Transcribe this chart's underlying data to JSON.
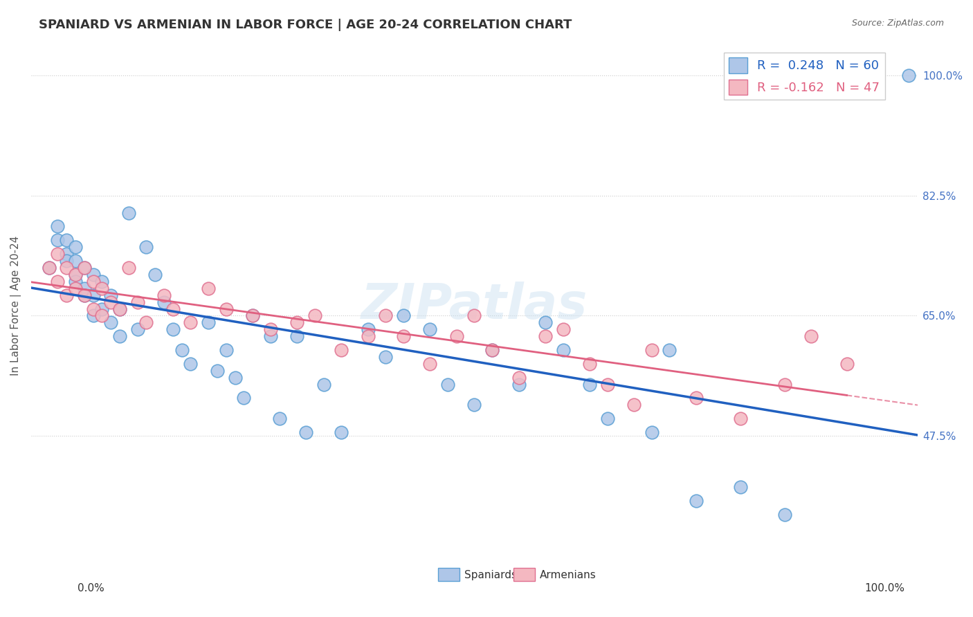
{
  "title": "SPANIARD VS ARMENIAN IN LABOR FORCE | AGE 20-24 CORRELATION CHART",
  "source": "Source: ZipAtlas.com",
  "ylabel": "In Labor Force | Age 20-24",
  "ytick_values": [
    0.475,
    0.65,
    0.825,
    1.0
  ],
  "xrange": [
    0.0,
    1.0
  ],
  "yrange": [
    0.28,
    1.05
  ],
  "spaniards_R": 0.248,
  "spaniards_N": 60,
  "armenians_R": -0.162,
  "armenians_N": 47,
  "spaniard_color": "#aec6e8",
  "spaniard_edge": "#5a9fd4",
  "armenian_color": "#f4b8c1",
  "armenian_edge": "#e07090",
  "line_spaniard_color": "#2060c0",
  "line_armenian_color": "#e06080",
  "watermark": "ZIPatlas",
  "spaniards_x": [
    0.02,
    0.03,
    0.03,
    0.04,
    0.04,
    0.04,
    0.05,
    0.05,
    0.05,
    0.05,
    0.06,
    0.06,
    0.06,
    0.07,
    0.07,
    0.07,
    0.08,
    0.08,
    0.09,
    0.09,
    0.1,
    0.1,
    0.11,
    0.12,
    0.13,
    0.14,
    0.15,
    0.16,
    0.17,
    0.18,
    0.2,
    0.21,
    0.22,
    0.23,
    0.24,
    0.25,
    0.27,
    0.28,
    0.3,
    0.31,
    0.33,
    0.35,
    0.38,
    0.4,
    0.42,
    0.45,
    0.47,
    0.5,
    0.52,
    0.55,
    0.58,
    0.6,
    0.63,
    0.65,
    0.7,
    0.72,
    0.75,
    0.8,
    0.85,
    0.99
  ],
  "spaniards_y": [
    0.72,
    0.76,
    0.78,
    0.76,
    0.74,
    0.73,
    0.75,
    0.73,
    0.71,
    0.7,
    0.72,
    0.69,
    0.68,
    0.71,
    0.68,
    0.65,
    0.7,
    0.66,
    0.68,
    0.64,
    0.66,
    0.62,
    0.8,
    0.63,
    0.75,
    0.71,
    0.67,
    0.63,
    0.6,
    0.58,
    0.64,
    0.57,
    0.6,
    0.56,
    0.53,
    0.65,
    0.62,
    0.5,
    0.62,
    0.48,
    0.55,
    0.48,
    0.63,
    0.59,
    0.65,
    0.63,
    0.55,
    0.52,
    0.6,
    0.55,
    0.64,
    0.6,
    0.55,
    0.5,
    0.48,
    0.6,
    0.38,
    0.4,
    0.36,
    1.0
  ],
  "armenians_x": [
    0.02,
    0.03,
    0.03,
    0.04,
    0.04,
    0.05,
    0.05,
    0.06,
    0.06,
    0.07,
    0.07,
    0.08,
    0.08,
    0.09,
    0.1,
    0.11,
    0.12,
    0.13,
    0.15,
    0.16,
    0.18,
    0.2,
    0.22,
    0.25,
    0.27,
    0.3,
    0.32,
    0.35,
    0.38,
    0.4,
    0.42,
    0.45,
    0.48,
    0.5,
    0.52,
    0.55,
    0.58,
    0.6,
    0.63,
    0.65,
    0.68,
    0.7,
    0.75,
    0.8,
    0.85,
    0.88,
    0.92
  ],
  "armenians_y": [
    0.72,
    0.74,
    0.7,
    0.72,
    0.68,
    0.71,
    0.69,
    0.72,
    0.68,
    0.7,
    0.66,
    0.69,
    0.65,
    0.67,
    0.66,
    0.72,
    0.67,
    0.64,
    0.68,
    0.66,
    0.64,
    0.69,
    0.66,
    0.65,
    0.63,
    0.64,
    0.65,
    0.6,
    0.62,
    0.65,
    0.62,
    0.58,
    0.62,
    0.65,
    0.6,
    0.56,
    0.62,
    0.63,
    0.58,
    0.55,
    0.52,
    0.6,
    0.53,
    0.5,
    0.55,
    0.62,
    0.58
  ]
}
